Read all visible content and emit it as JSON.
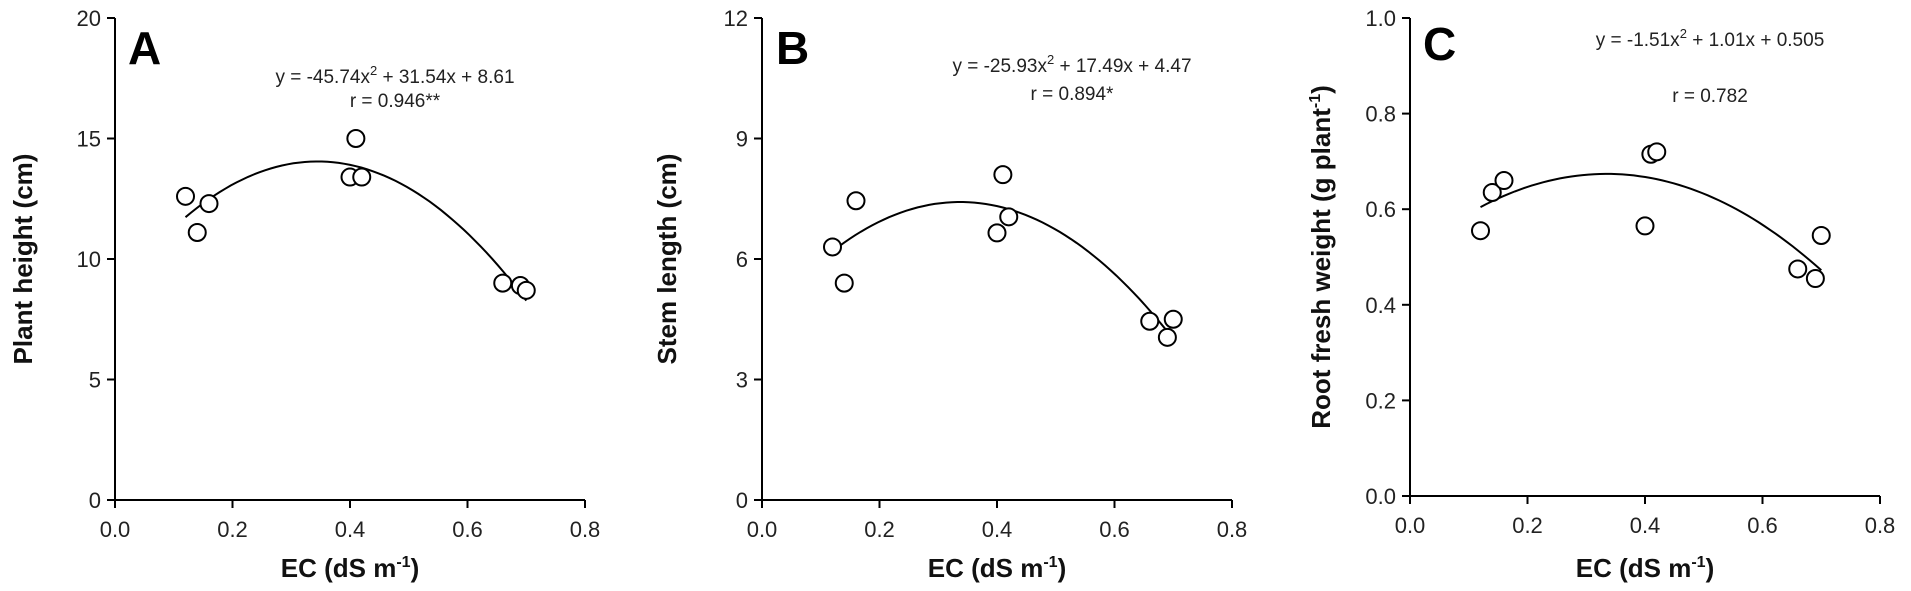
{
  "chart_data": [
    {
      "type": "scatter",
      "panel_label": "A",
      "xlabel": "EC (dS m",
      "xlabel_sup": "-1",
      "xlabel_end": ")",
      "ylabel": "Plant height (cm)",
      "ylabel_sup": "",
      "ylabel_end": "",
      "xlim": [
        0.0,
        0.8
      ],
      "ylim": [
        0,
        20
      ],
      "xticks": [
        "0.0",
        "0.2",
        "0.4",
        "0.6",
        "0.8"
      ],
      "xtick_values": [
        0.0,
        0.2,
        0.4,
        0.6,
        0.8
      ],
      "yticks": [
        "0",
        "5",
        "10",
        "15",
        "20"
      ],
      "ytick_values": [
        0,
        5,
        10,
        15,
        20
      ],
      "points": [
        {
          "x": 0.12,
          "y": 12.6
        },
        {
          "x": 0.14,
          "y": 11.1
        },
        {
          "x": 0.16,
          "y": 12.3
        },
        {
          "x": 0.4,
          "y": 13.4
        },
        {
          "x": 0.41,
          "y": 15.0
        },
        {
          "x": 0.42,
          "y": 13.4
        },
        {
          "x": 0.66,
          "y": 9.0
        },
        {
          "x": 0.69,
          "y": 8.9
        },
        {
          "x": 0.7,
          "y": 8.7
        }
      ],
      "fit": {
        "a": -45.74,
        "b": 31.54,
        "c": 8.61,
        "x_range": [
          0.12,
          0.7
        ]
      },
      "equation_parts": [
        "y = -45.74x",
        "2",
        " + 31.54x + 8.61"
      ],
      "r_text": "r = 0.946**"
    },
    {
      "type": "scatter",
      "panel_label": "B",
      "xlabel": "EC (dS m",
      "xlabel_sup": "-1",
      "xlabel_end": ")",
      "ylabel": "Stem length (cm)",
      "ylabel_sup": "",
      "ylabel_end": "",
      "xlim": [
        0.0,
        0.8
      ],
      "ylim": [
        0,
        12
      ],
      "xticks": [
        "0.0",
        "0.2",
        "0.4",
        "0.6",
        "0.8"
      ],
      "xtick_values": [
        0.0,
        0.2,
        0.4,
        0.6,
        0.8
      ],
      "yticks": [
        "0",
        "3",
        "6",
        "9",
        "12"
      ],
      "ytick_values": [
        0,
        3,
        6,
        9,
        12
      ],
      "points": [
        {
          "x": 0.12,
          "y": 6.3
        },
        {
          "x": 0.14,
          "y": 5.4
        },
        {
          "x": 0.16,
          "y": 7.45
        },
        {
          "x": 0.4,
          "y": 6.65
        },
        {
          "x": 0.41,
          "y": 8.1
        },
        {
          "x": 0.42,
          "y": 7.05
        },
        {
          "x": 0.66,
          "y": 4.45
        },
        {
          "x": 0.69,
          "y": 4.05
        },
        {
          "x": 0.7,
          "y": 4.5
        }
      ],
      "fit": {
        "a": -25.93,
        "b": 17.49,
        "c": 4.47,
        "x_range": [
          0.12,
          0.7
        ]
      },
      "equation_parts": [
        "y = -25.93x",
        "2",
        " + 17.49x + 4.47"
      ],
      "r_text": "r = 0.894*"
    },
    {
      "type": "scatter",
      "panel_label": "C",
      "xlabel": "EC (dS m",
      "xlabel_sup": "-1",
      "xlabel_end": ")",
      "ylabel": "Root fresh weight (g plant",
      "ylabel_sup": "-1",
      "ylabel_end": ")",
      "xlim": [
        0.0,
        0.8
      ],
      "ylim": [
        0.0,
        1.0
      ],
      "xticks": [
        "0.0",
        "0.2",
        "0.4",
        "0.6",
        "0.8"
      ],
      "xtick_values": [
        0.0,
        0.2,
        0.4,
        0.6,
        0.8
      ],
      "yticks": [
        "0.0",
        "0.2",
        "0.4",
        "0.6",
        "0.8",
        "1.0"
      ],
      "ytick_values": [
        0.0,
        0.2,
        0.4,
        0.6,
        0.8,
        1.0
      ],
      "points": [
        {
          "x": 0.12,
          "y": 0.555
        },
        {
          "x": 0.14,
          "y": 0.635
        },
        {
          "x": 0.16,
          "y": 0.66
        },
        {
          "x": 0.4,
          "y": 0.565
        },
        {
          "x": 0.41,
          "y": 0.715
        },
        {
          "x": 0.42,
          "y": 0.72
        },
        {
          "x": 0.66,
          "y": 0.475
        },
        {
          "x": 0.69,
          "y": 0.455
        },
        {
          "x": 0.7,
          "y": 0.545
        }
      ],
      "fit": {
        "a": -1.51,
        "b": 1.01,
        "c": 0.505,
        "x_range": [
          0.12,
          0.7
        ]
      },
      "equation_parts": [
        "y = -1.51x",
        "2",
        " + 1.01x + 0.505"
      ],
      "r_text": "r = 0.782"
    }
  ]
}
